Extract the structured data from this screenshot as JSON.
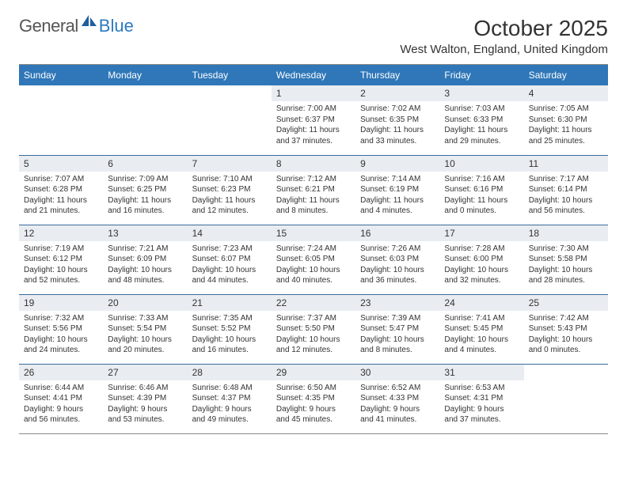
{
  "logo": {
    "text_gray": "General",
    "text_blue": "Blue"
  },
  "title": "October 2025",
  "location": "West Walton, England, United Kingdom",
  "colors": {
    "header_bg": "#2f77b8",
    "header_text": "#ffffff",
    "daynum_bg": "#e9edf1",
    "divider": "#3a6a9a",
    "logo_gray": "#555555",
    "logo_blue": "#2b7ac0"
  },
  "day_headers": [
    "Sunday",
    "Monday",
    "Tuesday",
    "Wednesday",
    "Thursday",
    "Friday",
    "Saturday"
  ],
  "weeks": [
    [
      {
        "n": "",
        "sr": "",
        "ss": "",
        "dl": "",
        "empty": true
      },
      {
        "n": "",
        "sr": "",
        "ss": "",
        "dl": "",
        "empty": true
      },
      {
        "n": "",
        "sr": "",
        "ss": "",
        "dl": "",
        "empty": true
      },
      {
        "n": "1",
        "sr": "Sunrise: 7:00 AM",
        "ss": "Sunset: 6:37 PM",
        "dl": "Daylight: 11 hours and 37 minutes."
      },
      {
        "n": "2",
        "sr": "Sunrise: 7:02 AM",
        "ss": "Sunset: 6:35 PM",
        "dl": "Daylight: 11 hours and 33 minutes."
      },
      {
        "n": "3",
        "sr": "Sunrise: 7:03 AM",
        "ss": "Sunset: 6:33 PM",
        "dl": "Daylight: 11 hours and 29 minutes."
      },
      {
        "n": "4",
        "sr": "Sunrise: 7:05 AM",
        "ss": "Sunset: 6:30 PM",
        "dl": "Daylight: 11 hours and 25 minutes."
      }
    ],
    [
      {
        "n": "5",
        "sr": "Sunrise: 7:07 AM",
        "ss": "Sunset: 6:28 PM",
        "dl": "Daylight: 11 hours and 21 minutes."
      },
      {
        "n": "6",
        "sr": "Sunrise: 7:09 AM",
        "ss": "Sunset: 6:25 PM",
        "dl": "Daylight: 11 hours and 16 minutes."
      },
      {
        "n": "7",
        "sr": "Sunrise: 7:10 AM",
        "ss": "Sunset: 6:23 PM",
        "dl": "Daylight: 11 hours and 12 minutes."
      },
      {
        "n": "8",
        "sr": "Sunrise: 7:12 AM",
        "ss": "Sunset: 6:21 PM",
        "dl": "Daylight: 11 hours and 8 minutes."
      },
      {
        "n": "9",
        "sr": "Sunrise: 7:14 AM",
        "ss": "Sunset: 6:19 PM",
        "dl": "Daylight: 11 hours and 4 minutes."
      },
      {
        "n": "10",
        "sr": "Sunrise: 7:16 AM",
        "ss": "Sunset: 6:16 PM",
        "dl": "Daylight: 11 hours and 0 minutes."
      },
      {
        "n": "11",
        "sr": "Sunrise: 7:17 AM",
        "ss": "Sunset: 6:14 PM",
        "dl": "Daylight: 10 hours and 56 minutes."
      }
    ],
    [
      {
        "n": "12",
        "sr": "Sunrise: 7:19 AM",
        "ss": "Sunset: 6:12 PM",
        "dl": "Daylight: 10 hours and 52 minutes."
      },
      {
        "n": "13",
        "sr": "Sunrise: 7:21 AM",
        "ss": "Sunset: 6:09 PM",
        "dl": "Daylight: 10 hours and 48 minutes."
      },
      {
        "n": "14",
        "sr": "Sunrise: 7:23 AM",
        "ss": "Sunset: 6:07 PM",
        "dl": "Daylight: 10 hours and 44 minutes."
      },
      {
        "n": "15",
        "sr": "Sunrise: 7:24 AM",
        "ss": "Sunset: 6:05 PM",
        "dl": "Daylight: 10 hours and 40 minutes."
      },
      {
        "n": "16",
        "sr": "Sunrise: 7:26 AM",
        "ss": "Sunset: 6:03 PM",
        "dl": "Daylight: 10 hours and 36 minutes."
      },
      {
        "n": "17",
        "sr": "Sunrise: 7:28 AM",
        "ss": "Sunset: 6:00 PM",
        "dl": "Daylight: 10 hours and 32 minutes."
      },
      {
        "n": "18",
        "sr": "Sunrise: 7:30 AM",
        "ss": "Sunset: 5:58 PM",
        "dl": "Daylight: 10 hours and 28 minutes."
      }
    ],
    [
      {
        "n": "19",
        "sr": "Sunrise: 7:32 AM",
        "ss": "Sunset: 5:56 PM",
        "dl": "Daylight: 10 hours and 24 minutes."
      },
      {
        "n": "20",
        "sr": "Sunrise: 7:33 AM",
        "ss": "Sunset: 5:54 PM",
        "dl": "Daylight: 10 hours and 20 minutes."
      },
      {
        "n": "21",
        "sr": "Sunrise: 7:35 AM",
        "ss": "Sunset: 5:52 PM",
        "dl": "Daylight: 10 hours and 16 minutes."
      },
      {
        "n": "22",
        "sr": "Sunrise: 7:37 AM",
        "ss": "Sunset: 5:50 PM",
        "dl": "Daylight: 10 hours and 12 minutes."
      },
      {
        "n": "23",
        "sr": "Sunrise: 7:39 AM",
        "ss": "Sunset: 5:47 PM",
        "dl": "Daylight: 10 hours and 8 minutes."
      },
      {
        "n": "24",
        "sr": "Sunrise: 7:41 AM",
        "ss": "Sunset: 5:45 PM",
        "dl": "Daylight: 10 hours and 4 minutes."
      },
      {
        "n": "25",
        "sr": "Sunrise: 7:42 AM",
        "ss": "Sunset: 5:43 PM",
        "dl": "Daylight: 10 hours and 0 minutes."
      }
    ],
    [
      {
        "n": "26",
        "sr": "Sunrise: 6:44 AM",
        "ss": "Sunset: 4:41 PM",
        "dl": "Daylight: 9 hours and 56 minutes."
      },
      {
        "n": "27",
        "sr": "Sunrise: 6:46 AM",
        "ss": "Sunset: 4:39 PM",
        "dl": "Daylight: 9 hours and 53 minutes."
      },
      {
        "n": "28",
        "sr": "Sunrise: 6:48 AM",
        "ss": "Sunset: 4:37 PM",
        "dl": "Daylight: 9 hours and 49 minutes."
      },
      {
        "n": "29",
        "sr": "Sunrise: 6:50 AM",
        "ss": "Sunset: 4:35 PM",
        "dl": "Daylight: 9 hours and 45 minutes."
      },
      {
        "n": "30",
        "sr": "Sunrise: 6:52 AM",
        "ss": "Sunset: 4:33 PM",
        "dl": "Daylight: 9 hours and 41 minutes."
      },
      {
        "n": "31",
        "sr": "Sunrise: 6:53 AM",
        "ss": "Sunset: 4:31 PM",
        "dl": "Daylight: 9 hours and 37 minutes."
      },
      {
        "n": "",
        "sr": "",
        "ss": "",
        "dl": "",
        "empty": true
      }
    ]
  ]
}
